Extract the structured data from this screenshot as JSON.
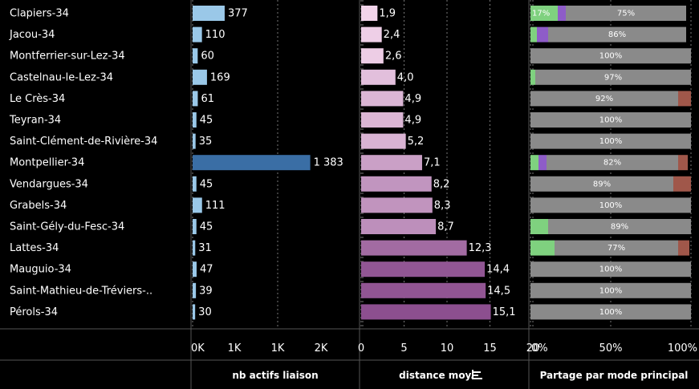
{
  "chart_data": {
    "type": "bar",
    "categories": [
      "Clapiers-34",
      "Jacou-34",
      "Montferrier-sur-Lez-34",
      "Castelnau-le-Lez-34",
      "Le Crès-34",
      "Teyran-34",
      "Saint-Clément-de-Rivière-34",
      "Montpellier-34",
      "Vendargues-34",
      "Grabels-34",
      "Saint-Gély-du-Fesc-34",
      "Lattes-34",
      "Mauguio-34",
      "Saint-Mathieu-de-Tréviers-..",
      "Pérols-34"
    ],
    "panels": [
      {
        "xlabel": "nb actifs liaison",
        "ticks": [
          "0K",
          "1K",
          "1K",
          "2K"
        ],
        "xlim": [
          0,
          3000
        ],
        "values": [
          377,
          110,
          60,
          169,
          61,
          45,
          35,
          1383,
          45,
          111,
          45,
          31,
          47,
          39,
          30
        ],
        "labels": [
          "377",
          "110",
          "60",
          "169",
          "61",
          "45",
          "35",
          "1 383",
          "45",
          "111",
          "45",
          "31",
          "47",
          "39",
          "30"
        ],
        "highlight": "Montpellier-34"
      },
      {
        "xlabel": "distance moy.",
        "ticks": [
          "0",
          "5",
          "10",
          "15",
          "20"
        ],
        "xlim": [
          0,
          20
        ],
        "values": [
          1.9,
          2.4,
          2.6,
          4.0,
          4.9,
          4.9,
          5.2,
          7.1,
          8.2,
          8.3,
          8.7,
          12.3,
          14.4,
          14.5,
          15.1
        ],
        "labels": [
          "1,9",
          "2,4",
          "2,6",
          "4,0",
          "4,9",
          "4,9",
          "5,2",
          "7,1",
          "8,2",
          "8,3",
          "8,7",
          "12,3",
          "14,4",
          "14,5",
          "15,1"
        ],
        "sort_icon": "sort-descending-icon"
      },
      {
        "xlabel": "Partage par mode principal",
        "ticks": [
          "0%",
          "50%",
          "100%"
        ],
        "xlim": [
          0,
          100
        ],
        "segments": [
          {
            "green": 17,
            "purple": 5,
            "gray": 75,
            "red": 0,
            "label": "75%",
            "green_label": "17%"
          },
          {
            "green": 4,
            "purple": 7,
            "gray": 86,
            "red": 0,
            "label": "86%"
          },
          {
            "green": 0,
            "purple": 0,
            "gray": 100,
            "red": 0,
            "label": "100%"
          },
          {
            "green": 3,
            "purple": 0,
            "gray": 97,
            "red": 0,
            "label": "97%"
          },
          {
            "green": 0,
            "purple": 0,
            "gray": 92,
            "red": 8,
            "label": "92%"
          },
          {
            "green": 0,
            "purple": 0,
            "gray": 100,
            "red": 0,
            "label": "100%"
          },
          {
            "green": 0,
            "purple": 0,
            "gray": 100,
            "red": 0,
            "label": "100%"
          },
          {
            "green": 5,
            "purple": 5,
            "gray": 82,
            "red": 6,
            "label": "82%"
          },
          {
            "green": 0,
            "purple": 0,
            "gray": 89,
            "red": 11,
            "label": "89%"
          },
          {
            "green": 0,
            "purple": 0,
            "gray": 100,
            "red": 0,
            "label": "100%"
          },
          {
            "green": 11,
            "purple": 0,
            "gray": 89,
            "red": 0,
            "label": "89%"
          },
          {
            "green": 15,
            "purple": 0,
            "gray": 77,
            "red": 7,
            "label": "77%"
          },
          {
            "green": 0,
            "purple": 0,
            "gray": 100,
            "red": 0,
            "label": "100%"
          },
          {
            "green": 0,
            "purple": 0,
            "gray": 100,
            "red": 0,
            "label": "100%"
          },
          {
            "green": 0,
            "purple": 0,
            "gray": 100,
            "red": 0,
            "label": "100%"
          }
        ]
      }
    ],
    "colors": {
      "bar_blue": "#9ac8e8",
      "bar_highlight": "#3a6ea5",
      "pink_light": "#f2d4ea",
      "pink_dark": "#8c4f8f",
      "mode_green": "#7fd17f",
      "mode_purple": "#8e5cc8",
      "mode_gray": "#8a8a8a",
      "mode_red": "#a0574a",
      "background": "#000000"
    }
  }
}
